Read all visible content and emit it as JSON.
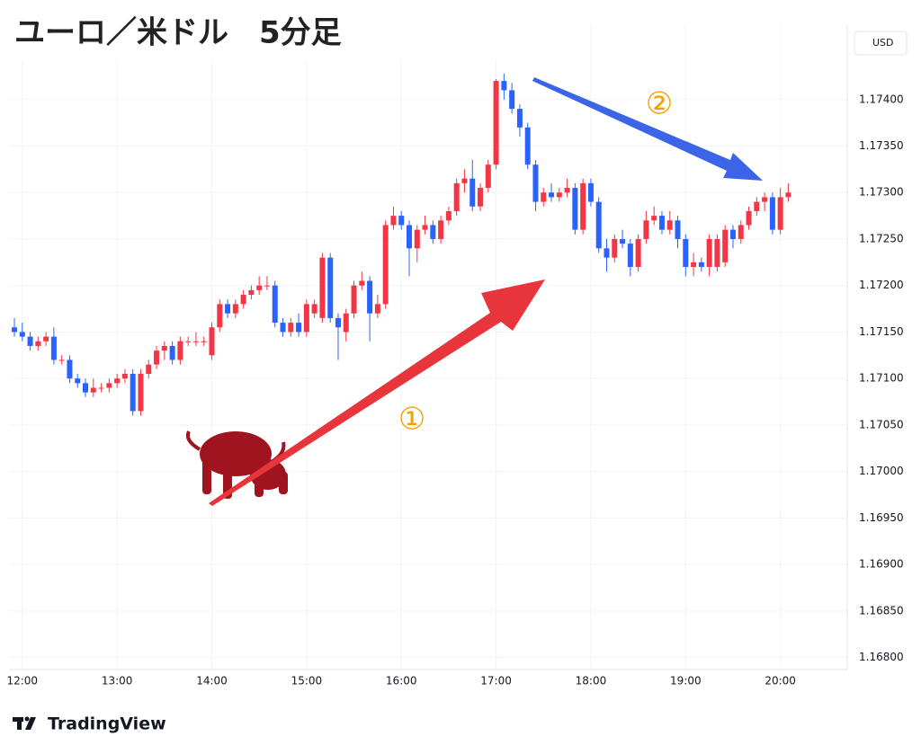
{
  "chart_data": {
    "type": "candlestick",
    "title": "ユーロ／米ドル　5分足",
    "currency": "USD",
    "brand": "TradingView",
    "annotations": [
      "①",
      "②"
    ],
    "up_color": "#f23645",
    "down_color": "#2962ff",
    "grid": true,
    "ylim": [
      1.16787,
      1.1748
    ],
    "yticks": [
      {
        "value": 1.168,
        "label": "1.16800"
      },
      {
        "value": 1.1685,
        "label": "1.16850"
      },
      {
        "value": 1.169,
        "label": "1.16900"
      },
      {
        "value": 1.1695,
        "label": "1.16950"
      },
      {
        "value": 1.17,
        "label": "1.17000"
      },
      {
        "value": 1.1705,
        "label": "1.17050"
      },
      {
        "value": 1.171,
        "label": "1.17100"
      },
      {
        "value": 1.1715,
        "label": "1.17150"
      },
      {
        "value": 1.172,
        "label": "1.17200"
      },
      {
        "value": 1.1725,
        "label": "1.17250"
      },
      {
        "value": 1.173,
        "label": "1.17300"
      },
      {
        "value": 1.1735,
        "label": "1.17350"
      },
      {
        "value": 1.174,
        "label": "1.17400"
      }
    ],
    "xticks": [
      "12:00",
      "13:00",
      "14:00",
      "15:00",
      "16:00",
      "17:00",
      "18:00",
      "19:00",
      "20:00"
    ],
    "x": [
      "11:55",
      "12:00",
      "12:05",
      "12:10",
      "12:15",
      "12:20",
      "12:25",
      "12:30",
      "12:35",
      "12:40",
      "12:45",
      "12:50",
      "12:55",
      "13:00",
      "13:05",
      "13:10",
      "13:15",
      "13:20",
      "13:25",
      "13:30",
      "13:35",
      "13:40",
      "13:45",
      "13:50",
      "13:55",
      "14:00",
      "14:05",
      "14:10",
      "14:15",
      "14:20",
      "14:25",
      "14:30",
      "14:35",
      "14:40",
      "14:45",
      "14:50",
      "14:55",
      "15:00",
      "15:05",
      "15:10",
      "15:15",
      "15:20",
      "15:25",
      "15:30",
      "15:35",
      "15:40",
      "15:45",
      "15:50",
      "15:55",
      "16:00",
      "16:05",
      "16:10",
      "16:15",
      "16:20",
      "16:25",
      "16:30",
      "16:35",
      "16:40",
      "16:45",
      "16:50",
      "16:55",
      "17:00",
      "17:05",
      "17:10",
      "17:15",
      "17:20",
      "17:25",
      "17:30",
      "17:35",
      "17:40",
      "17:45",
      "17:50",
      "17:55",
      "18:00",
      "18:05",
      "18:10",
      "18:15",
      "18:20",
      "18:25",
      "18:30",
      "18:35",
      "18:40",
      "18:45",
      "18:50",
      "18:55",
      "19:00",
      "19:05",
      "19:10",
      "19:15",
      "19:20",
      "19:25",
      "19:30",
      "19:35",
      "19:40",
      "19:45",
      "19:50",
      "19:55",
      "20:00",
      "20:05"
    ],
    "ohlc": [
      [
        1.17155,
        1.17165,
        1.17145,
        1.1715
      ],
      [
        1.1715,
        1.1716,
        1.1714,
        1.17145
      ],
      [
        1.17145,
        1.1715,
        1.1713,
        1.17135
      ],
      [
        1.17135,
        1.17145,
        1.1713,
        1.1714
      ],
      [
        1.1714,
        1.1715,
        1.17135,
        1.17145
      ],
      [
        1.17145,
        1.17155,
        1.17115,
        1.1712
      ],
      [
        1.1712,
        1.17125,
        1.17115,
        1.1712
      ],
      [
        1.1712,
        1.17125,
        1.17095,
        1.171
      ],
      [
        1.171,
        1.17105,
        1.1709,
        1.17095
      ],
      [
        1.17095,
        1.171,
        1.1708,
        1.17085
      ],
      [
        1.17085,
        1.171,
        1.1708,
        1.1709
      ],
      [
        1.1709,
        1.17095,
        1.17085,
        1.1709
      ],
      [
        1.1709,
        1.171,
        1.17085,
        1.17095
      ],
      [
        1.17095,
        1.17105,
        1.1709,
        1.171
      ],
      [
        1.171,
        1.1711,
        1.17095,
        1.17105
      ],
      [
        1.17105,
        1.1711,
        1.1706,
        1.17065
      ],
      [
        1.17065,
        1.1711,
        1.1706,
        1.17105
      ],
      [
        1.17105,
        1.1712,
        1.171,
        1.17115
      ],
      [
        1.17115,
        1.17135,
        1.1711,
        1.1713
      ],
      [
        1.1713,
        1.1714,
        1.1712,
        1.17135
      ],
      [
        1.17135,
        1.1714,
        1.17115,
        1.1712
      ],
      [
        1.1712,
        1.17145,
        1.17115,
        1.1714
      ],
      [
        1.1714,
        1.17145,
        1.17135,
        1.1714
      ],
      [
        1.1714,
        1.1715,
        1.17135,
        1.1714
      ],
      [
        1.1714,
        1.17145,
        1.17135,
        1.1714
      ],
      [
        1.17125,
        1.1716,
        1.1712,
        1.17155
      ],
      [
        1.17155,
        1.17185,
        1.1715,
        1.1718
      ],
      [
        1.1718,
        1.17185,
        1.17165,
        1.1717
      ],
      [
        1.1717,
        1.17185,
        1.17165,
        1.1718
      ],
      [
        1.1718,
        1.17195,
        1.17175,
        1.1719
      ],
      [
        1.1719,
        1.172,
        1.17185,
        1.17195
      ],
      [
        1.17195,
        1.1721,
        1.1719,
        1.172
      ],
      [
        1.172,
        1.1721,
        1.17195,
        1.172
      ],
      [
        1.172,
        1.17205,
        1.17155,
        1.1716
      ],
      [
        1.1716,
        1.17165,
        1.17145,
        1.1715
      ],
      [
        1.1715,
        1.17165,
        1.17145,
        1.1716
      ],
      [
        1.1716,
        1.1717,
        1.17145,
        1.1715
      ],
      [
        1.1715,
        1.17185,
        1.17145,
        1.1718
      ],
      [
        1.1717,
        1.17185,
        1.17165,
        1.1718
      ],
      [
        1.17165,
        1.17235,
        1.1716,
        1.1723
      ],
      [
        1.1723,
        1.17235,
        1.1716,
        1.17165
      ],
      [
        1.17165,
        1.1717,
        1.1712,
        1.17155
      ],
      [
        1.1715,
        1.17175,
        1.1714,
        1.1717
      ],
      [
        1.1717,
        1.17205,
        1.17165,
        1.172
      ],
      [
        1.172,
        1.17215,
        1.17195,
        1.17205
      ],
      [
        1.17205,
        1.1721,
        1.1714,
        1.1717
      ],
      [
        1.1717,
        1.1719,
        1.17165,
        1.1718
      ],
      [
        1.1718,
        1.1727,
        1.17175,
        1.17265
      ],
      [
        1.17265,
        1.17285,
        1.1726,
        1.17275
      ],
      [
        1.17275,
        1.1728,
        1.1726,
        1.17265
      ],
      [
        1.17265,
        1.1727,
        1.1721,
        1.1724
      ],
      [
        1.1724,
        1.17265,
        1.17225,
        1.1726
      ],
      [
        1.1726,
        1.17275,
        1.17255,
        1.17265
      ],
      [
        1.17265,
        1.1727,
        1.17245,
        1.1725
      ],
      [
        1.1725,
        1.17275,
        1.17245,
        1.1727
      ],
      [
        1.1727,
        1.17285,
        1.17265,
        1.1728
      ],
      [
        1.1728,
        1.17315,
        1.17275,
        1.1731
      ],
      [
        1.1731,
        1.17325,
        1.173,
        1.17315
      ],
      [
        1.17315,
        1.17335,
        1.1728,
        1.17285
      ],
      [
        1.17285,
        1.1731,
        1.1728,
        1.17305
      ],
      [
        1.17305,
        1.17335,
        1.173,
        1.1733
      ],
      [
        1.1733,
        1.17422,
        1.17325,
        1.1742
      ],
      [
        1.1742,
        1.17428,
        1.174,
        1.1741
      ],
      [
        1.1741,
        1.17418,
        1.17385,
        1.1739
      ],
      [
        1.1739,
        1.17395,
        1.1736,
        1.1737
      ],
      [
        1.1737,
        1.17375,
        1.17325,
        1.1733
      ],
      [
        1.1733,
        1.17335,
        1.1728,
        1.1729
      ],
      [
        1.1729,
        1.17305,
        1.17285,
        1.173
      ],
      [
        1.173,
        1.1731,
        1.1729,
        1.17295
      ],
      [
        1.17295,
        1.17305,
        1.1729,
        1.173
      ],
      [
        1.173,
        1.17315,
        1.17295,
        1.17305
      ],
      [
        1.17305,
        1.1731,
        1.17255,
        1.1726
      ],
      [
        1.1726,
        1.17315,
        1.17255,
        1.1731
      ],
      [
        1.1731,
        1.17315,
        1.17285,
        1.1729
      ],
      [
        1.1729,
        1.17295,
        1.17235,
        1.1724
      ],
      [
        1.1724,
        1.1725,
        1.17215,
        1.1723
      ],
      [
        1.1723,
        1.17255,
        1.17225,
        1.1725
      ],
      [
        1.1725,
        1.1726,
        1.1724,
        1.17245
      ],
      [
        1.17245,
        1.1725,
        1.1721,
        1.1722
      ],
      [
        1.1722,
        1.17255,
        1.17215,
        1.1725
      ],
      [
        1.1725,
        1.1728,
        1.17245,
        1.1727
      ],
      [
        1.1727,
        1.17285,
        1.17265,
        1.17275
      ],
      [
        1.17275,
        1.1728,
        1.17255,
        1.1726
      ],
      [
        1.1726,
        1.1728,
        1.17255,
        1.1727
      ],
      [
        1.1727,
        1.17275,
        1.1724,
        1.1725
      ],
      [
        1.1725,
        1.17255,
        1.1721,
        1.1722
      ],
      [
        1.1722,
        1.17235,
        1.1721,
        1.17225
      ],
      [
        1.17225,
        1.1723,
        1.17215,
        1.1722
      ],
      [
        1.1722,
        1.17255,
        1.1721,
        1.1725
      ],
      [
        1.1722,
        1.17255,
        1.17215,
        1.1725
      ],
      [
        1.17225,
        1.17265,
        1.1722,
        1.1726
      ],
      [
        1.1726,
        1.17265,
        1.1724,
        1.1725
      ],
      [
        1.1725,
        1.1727,
        1.17245,
        1.17265
      ],
      [
        1.17265,
        1.17285,
        1.1726,
        1.1728
      ],
      [
        1.1728,
        1.17295,
        1.17275,
        1.1729
      ],
      [
        1.1729,
        1.173,
        1.1728,
        1.17295
      ],
      [
        1.17295,
        1.173,
        1.17255,
        1.1726
      ],
      [
        1.1726,
        1.17305,
        1.17255,
        1.17295
      ],
      [
        1.17295,
        1.1731,
        1.1729,
        1.173
      ]
    ]
  }
}
